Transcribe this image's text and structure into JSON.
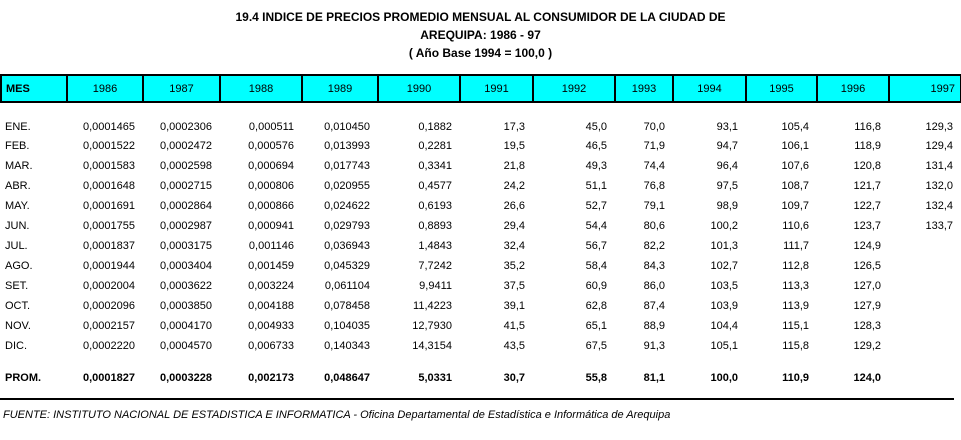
{
  "title": {
    "line1": "19.4 INDICE DE PRECIOS PROMEDIO MENSUAL AL CONSUMIDOR DE LA CIUDAD DE",
    "line2": "AREQUIPA: 1986 - 97",
    "line3": "( Año Base 1994 = 100,0 )"
  },
  "colors": {
    "header_background": "#00FFFF",
    "border": "#000000",
    "text": "#000000",
    "page_background": "#FFFFFF"
  },
  "table": {
    "columns": [
      "MES",
      "1986",
      "1987",
      "1988",
      "1989",
      "1990",
      "1991",
      "1992",
      "1993",
      "1994",
      "1995",
      "1996",
      "1997"
    ],
    "rows": [
      {
        "label": "ENE.",
        "bold": false,
        "spacer_before": false,
        "values": [
          "0,0001465",
          "0,0002306",
          "0,000511",
          "0,010450",
          "0,1882",
          "17,3",
          "45,0",
          "70,0",
          "93,1",
          "105,4",
          "116,8",
          "129,3"
        ]
      },
      {
        "label": "FEB.",
        "bold": false,
        "spacer_before": false,
        "values": [
          "0,0001522",
          "0,0002472",
          "0,000576",
          "0,013993",
          "0,2281",
          "19,5",
          "46,5",
          "71,9",
          "94,7",
          "106,1",
          "118,9",
          "129,4"
        ]
      },
      {
        "label": "MAR.",
        "bold": false,
        "spacer_before": false,
        "values": [
          "0,0001583",
          "0,0002598",
          "0,000694",
          "0,017743",
          "0,3341",
          "21,8",
          "49,3",
          "74,4",
          "96,4",
          "107,6",
          "120,8",
          "131,4"
        ]
      },
      {
        "label": "ABR.",
        "bold": false,
        "spacer_before": false,
        "values": [
          "0,0001648",
          "0,0002715",
          "0,000806",
          "0,020955",
          "0,4577",
          "24,2",
          "51,1",
          "76,8",
          "97,5",
          "108,7",
          "121,7",
          "132,0"
        ]
      },
      {
        "label": "MAY.",
        "bold": false,
        "spacer_before": false,
        "values": [
          "0,0001691",
          "0,0002864",
          "0,000866",
          "0,024622",
          "0,6193",
          "26,6",
          "52,7",
          "79,1",
          "98,9",
          "109,7",
          "122,7",
          "132,4"
        ]
      },
      {
        "label": "JUN.",
        "bold": false,
        "spacer_before": false,
        "values": [
          "0,0001755",
          "0,0002987",
          "0,000941",
          "0,029793",
          "0,8893",
          "29,4",
          "54,4",
          "80,6",
          "100,2",
          "110,6",
          "123,7",
          "133,7"
        ]
      },
      {
        "label": "JUL.",
        "bold": false,
        "spacer_before": false,
        "values": [
          "0,0001837",
          "0,0003175",
          "0,001146",
          "0,036943",
          "1,4843",
          "32,4",
          "56,7",
          "82,2",
          "101,3",
          "111,7",
          "124,9",
          ""
        ]
      },
      {
        "label": "AGO.",
        "bold": false,
        "spacer_before": false,
        "values": [
          "0,0001944",
          "0,0003404",
          "0,001459",
          "0,045329",
          "7,7242",
          "35,2",
          "58,4",
          "84,3",
          "102,7",
          "112,8",
          "126,5",
          ""
        ]
      },
      {
        "label": "SET.",
        "bold": false,
        "spacer_before": false,
        "values": [
          "0,0002004",
          "0,0003622",
          "0,003224",
          "0,061104",
          "9,9411",
          "37,5",
          "60,9",
          "86,0",
          "103,5",
          "113,3",
          "127,0",
          ""
        ]
      },
      {
        "label": "OCT.",
        "bold": false,
        "spacer_before": false,
        "values": [
          "0,0002096",
          "0,0003850",
          "0,004188",
          "0,078458",
          "11,4223",
          "39,1",
          "62,8",
          "87,4",
          "103,9",
          "113,9",
          "127,9",
          ""
        ]
      },
      {
        "label": "NOV.",
        "bold": false,
        "spacer_before": false,
        "values": [
          "0,0002157",
          "0,0004170",
          "0,004933",
          "0,104035",
          "12,7930",
          "41,5",
          "65,1",
          "88,9",
          "104,4",
          "115,1",
          "128,3",
          ""
        ]
      },
      {
        "label": "DIC.",
        "bold": false,
        "spacer_before": false,
        "values": [
          "0,0002220",
          "0,0004570",
          "0,006733",
          "0,140343",
          "14,3154",
          "43,5",
          "67,5",
          "91,3",
          "105,1",
          "115,8",
          "129,2",
          ""
        ]
      },
      {
        "label": "PROM.",
        "bold": true,
        "spacer_before": true,
        "values": [
          "0,0001827",
          "0,0003228",
          "0,002173",
          "0,048647",
          "5,0331",
          "30,7",
          "55,8",
          "81,1",
          "100,0",
          "110,9",
          "124,0",
          ""
        ]
      }
    ]
  },
  "footer": {
    "source": "FUENTE: INSTITUTO NACIONAL DE ESTADISTICA E INFORMATICA - Oficina Departamental de Estadística e Informática de Arequipa"
  }
}
